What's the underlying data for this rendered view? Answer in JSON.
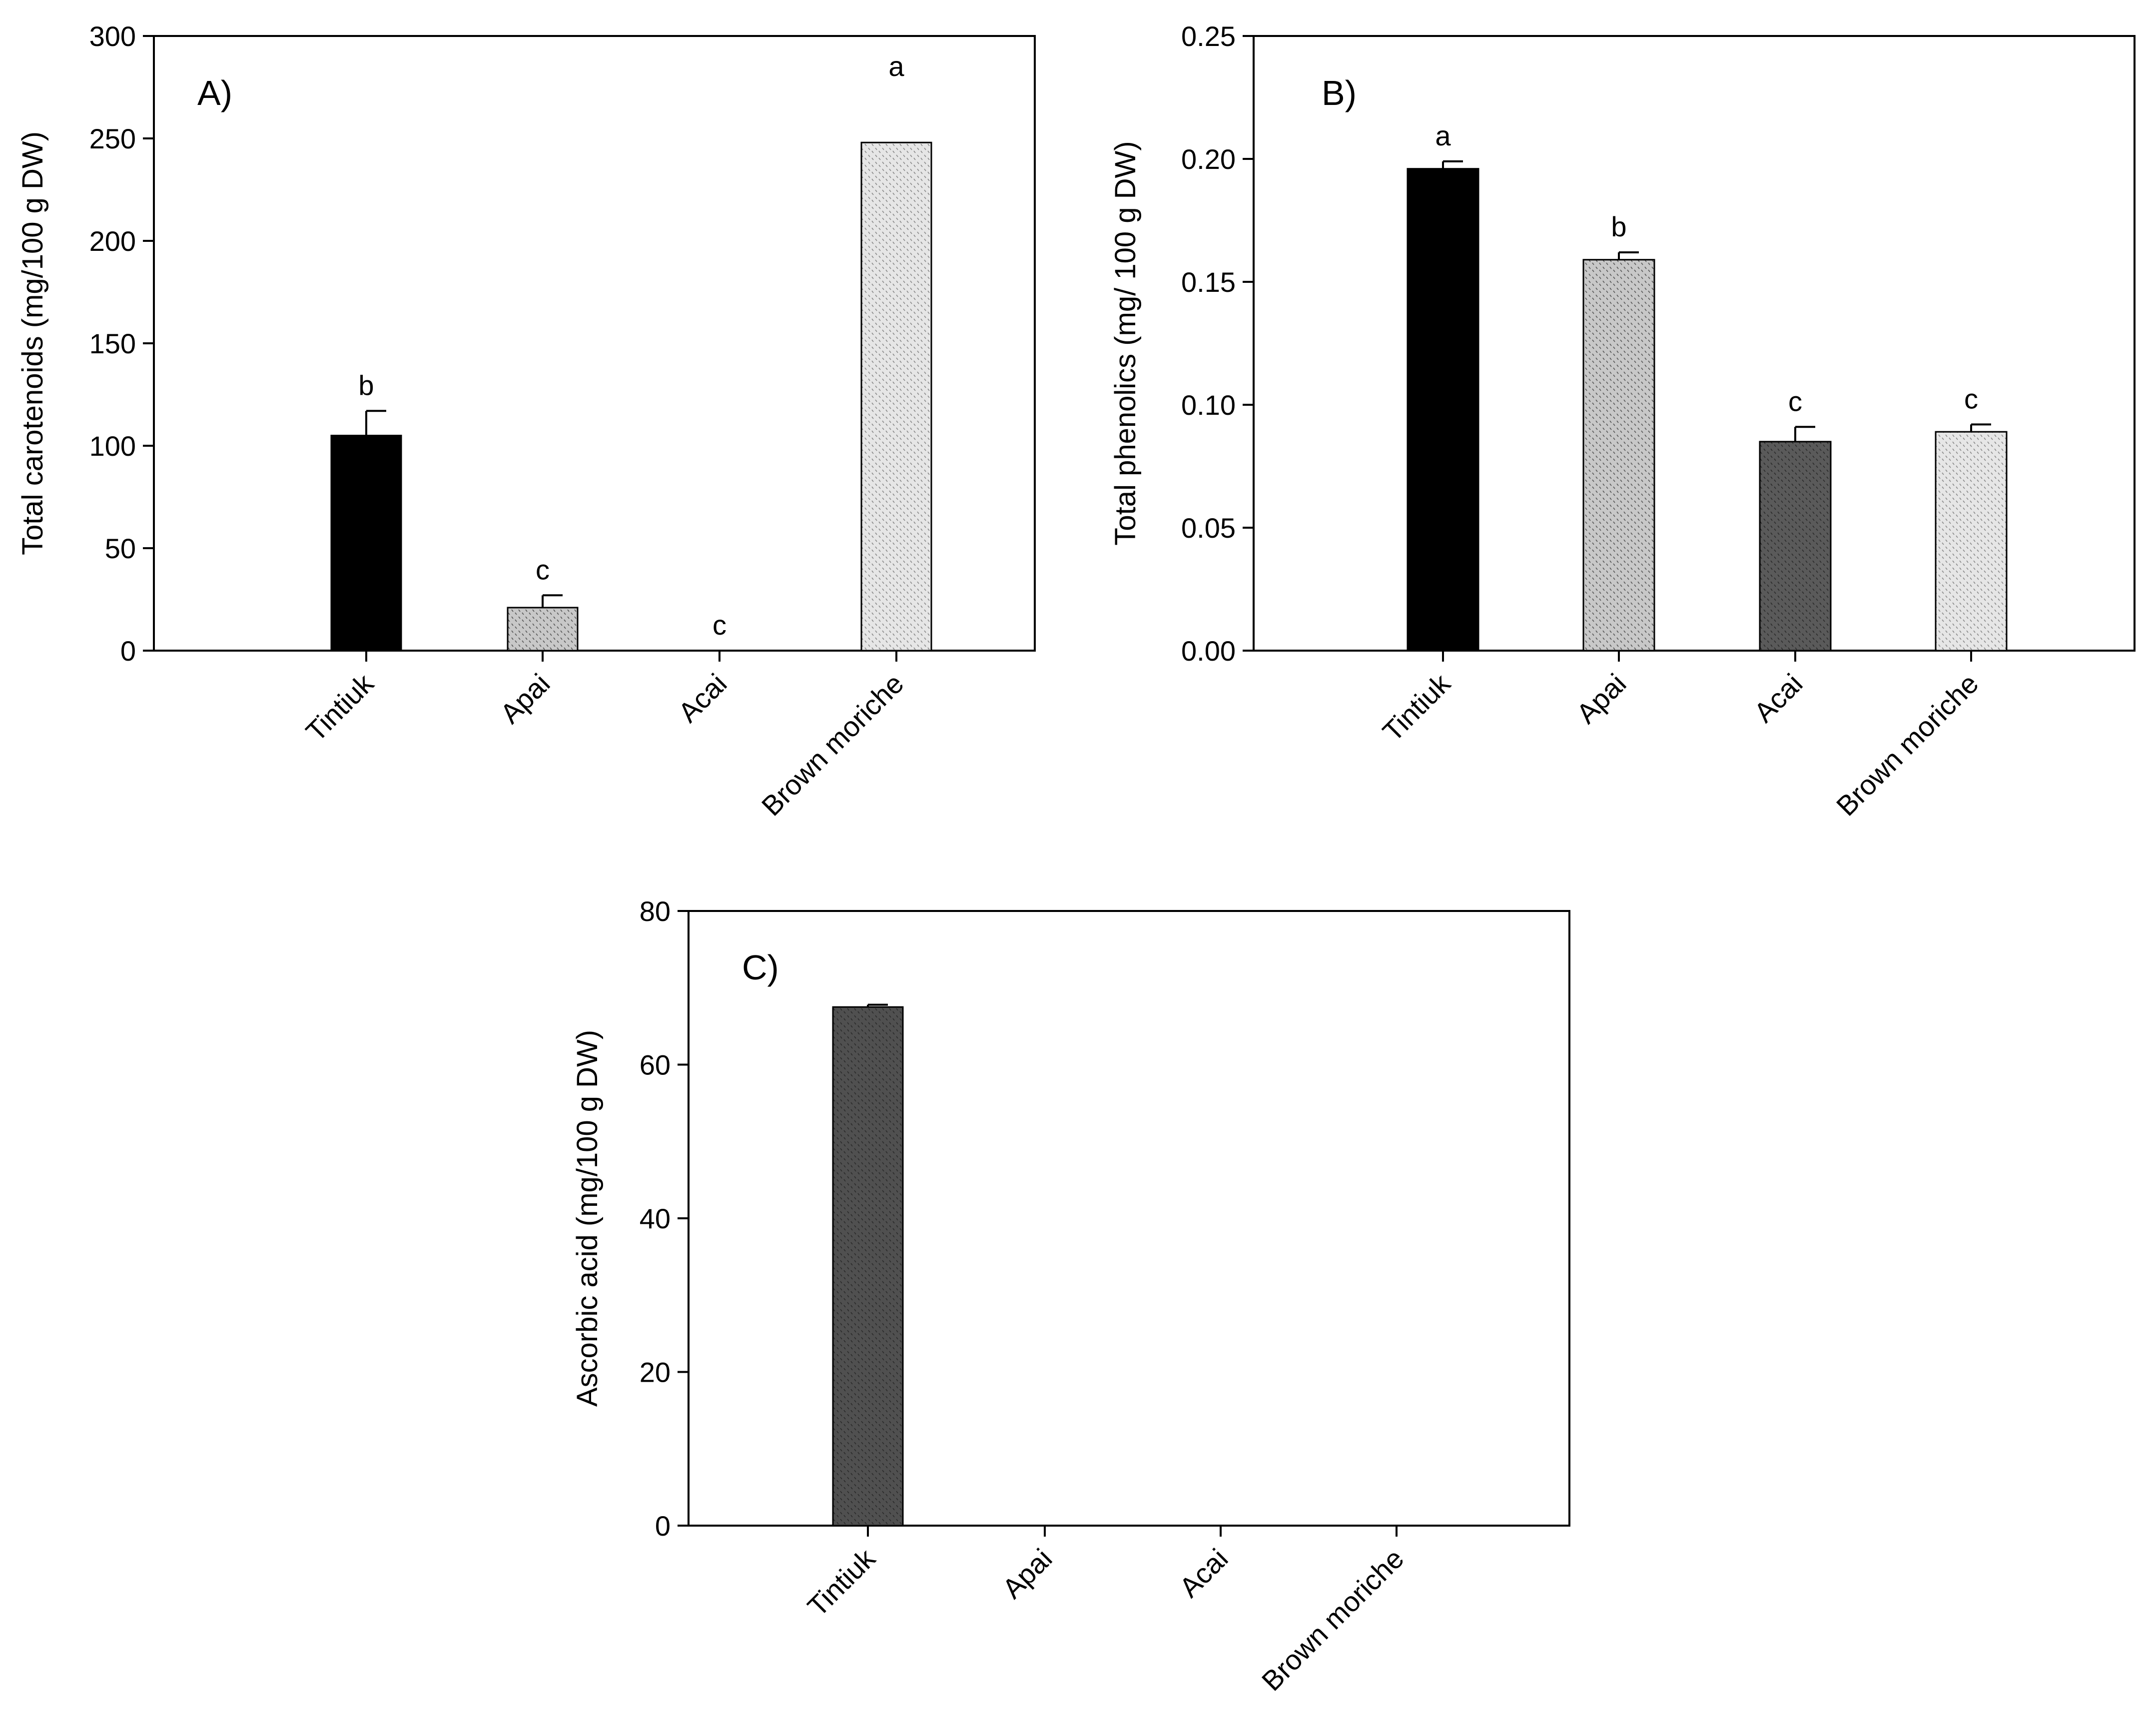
{
  "chart_data": [
    {
      "type": "bar",
      "panel_label": "A)",
      "title": "",
      "xlabel": "",
      "ylabel": "Total carotenoids (mg/100 g DW)",
      "ylim": [
        0,
        300
      ],
      "yticks": [
        0,
        50,
        100,
        150,
        200,
        250,
        300
      ],
      "ytick_labels": [
        "0",
        "50",
        "100",
        "150",
        "200",
        "250",
        "300"
      ],
      "categories": [
        "Tintiuk",
        "Apai",
        "Acai",
        "Brown moriche"
      ],
      "values": [
        105,
        21,
        0,
        248
      ],
      "errors": [
        12,
        6,
        0,
        0
      ],
      "significance_letters": [
        "b",
        "c",
        "c",
        "a"
      ],
      "grid": false
    },
    {
      "type": "bar",
      "panel_label": "B)",
      "title": "",
      "xlabel": "",
      "ylabel": "Total phenolics (mg/ 100 g DW)",
      "ylim": [
        0,
        0.25
      ],
      "yticks": [
        0,
        0.05,
        0.1,
        0.15,
        0.2,
        0.25
      ],
      "ytick_labels": [
        "0.00",
        "0.05",
        "0.10",
        "0.15",
        "0.20",
        "0.25"
      ],
      "categories": [
        "Tintiuk",
        "Apai",
        "Acai",
        "Brown moriche"
      ],
      "values": [
        0.196,
        0.159,
        0.085,
        0.089
      ],
      "errors": [
        0.003,
        0.003,
        0.006,
        0.003
      ],
      "significance_letters": [
        "a",
        "b",
        "c",
        "c"
      ],
      "grid": false
    },
    {
      "type": "bar",
      "panel_label": "C)",
      "title": "",
      "xlabel": "",
      "ylabel": "Ascorbic acid (mg/100 g DW)",
      "ylim": [
        0,
        80
      ],
      "yticks": [
        0,
        20,
        40,
        60,
        80
      ],
      "ytick_labels": [
        "0",
        "20",
        "40",
        "60",
        "80"
      ],
      "categories": [
        "Tintiuk",
        "Apai",
        "Acai",
        "Brown moriche"
      ],
      "values": [
        67.5,
        0,
        0,
        0
      ],
      "errors": [
        0.3,
        0,
        0,
        0
      ],
      "significance_letters": [
        "",
        "",
        "",
        ""
      ],
      "grid": false
    }
  ],
  "colors": {
    "bar_black": "#000000",
    "bar_light_gray": "#c8c8c8",
    "bar_dark_gray": "#5a5a5a",
    "bar_very_light": "#e6e6e6",
    "bar_c_dark": "#505050",
    "axis": "#000000"
  }
}
